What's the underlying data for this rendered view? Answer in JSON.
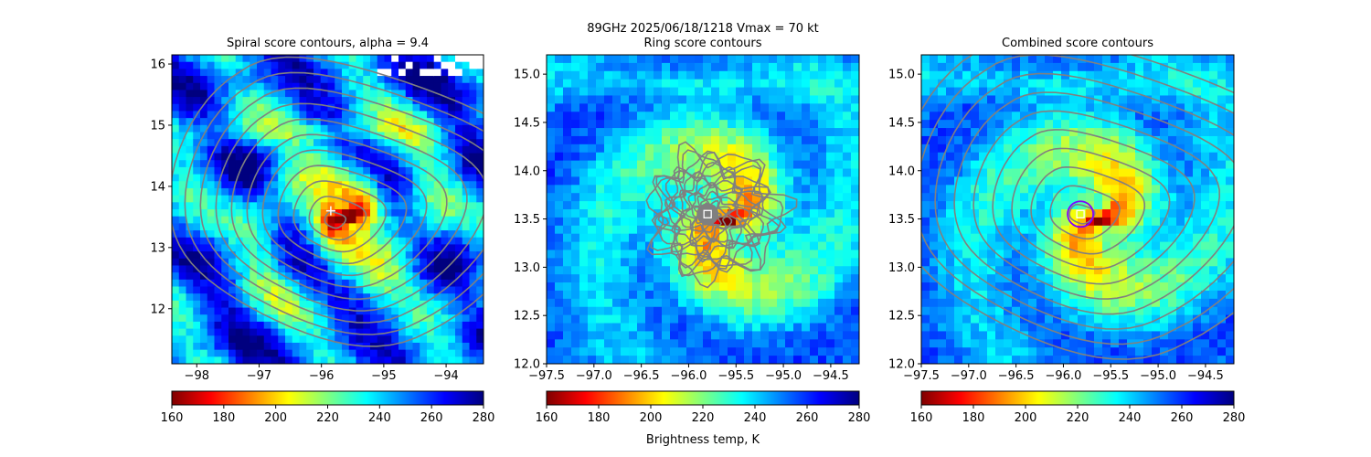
{
  "suptitle": "89GHz  2025/06/18/1218    Vmax = 70 kt",
  "colorbar_label": "Brightness temp, K",
  "colormap": [
    "#7f0000",
    "#ff0000",
    "#ff7f00",
    "#ffff00",
    "#7fff7f",
    "#00ffff",
    "#007fff",
    "#0000ff",
    "#00007f"
  ],
  "contour_color": "#808080",
  "marker_color": "#ffffff",
  "circle_color": "#8000ff",
  "chart_data": [
    {
      "type": "heatmap",
      "title": "Spiral score contours, alpha =  9.4",
      "xlim": [
        -98.4,
        -93.4
      ],
      "ylim": [
        11.1,
        16.15
      ],
      "xticks": [
        -98,
        -97,
        -96,
        -95,
        -94
      ],
      "yticks": [
        12,
        13,
        14,
        15,
        16
      ],
      "clim": [
        160,
        280
      ],
      "cticks": [
        160,
        180,
        200,
        220,
        240,
        260,
        280
      ],
      "center": [
        -95.85,
        13.6
      ],
      "center_marker": "plus",
      "contour_center": [
        -95.8,
        13.45
      ],
      "warm_core": [
        -95.6,
        13.5
      ]
    },
    {
      "type": "heatmap",
      "title": "Ring score contours",
      "xlim": [
        -97.5,
        -94.2
      ],
      "ylim": [
        12.0,
        15.2
      ],
      "xticks": [
        -97.5,
        -97.0,
        -96.5,
        -96.0,
        -95.5,
        -95.0,
        -94.5
      ],
      "yticks": [
        12.0,
        12.5,
        13.0,
        13.5,
        14.0,
        14.5,
        15.0
      ],
      "clim": [
        160,
        280
      ],
      "cticks": [
        160,
        180,
        200,
        220,
        240,
        260,
        280
      ],
      "center": [
        -95.8,
        13.55
      ],
      "center_marker": "square",
      "contour_center": [
        -95.8,
        13.55
      ],
      "warm_core": [
        -95.6,
        13.5
      ]
    },
    {
      "type": "heatmap",
      "title": "Combined score contours",
      "xlim": [
        -97.5,
        -94.2
      ],
      "ylim": [
        12.0,
        15.2
      ],
      "xticks": [
        -97.5,
        -97.0,
        -96.5,
        -96.0,
        -95.5,
        -95.0,
        -94.5
      ],
      "yticks": [
        12.0,
        12.5,
        13.0,
        13.5,
        14.0,
        14.5,
        15.0
      ],
      "clim": [
        160,
        280
      ],
      "cticks": [
        160,
        180,
        200,
        220,
        240,
        260,
        280
      ],
      "center": [
        -95.82,
        13.55
      ],
      "center_marker": "square",
      "contour_center": [
        -95.82,
        13.55
      ],
      "warm_core": [
        -95.6,
        13.5
      ]
    }
  ]
}
